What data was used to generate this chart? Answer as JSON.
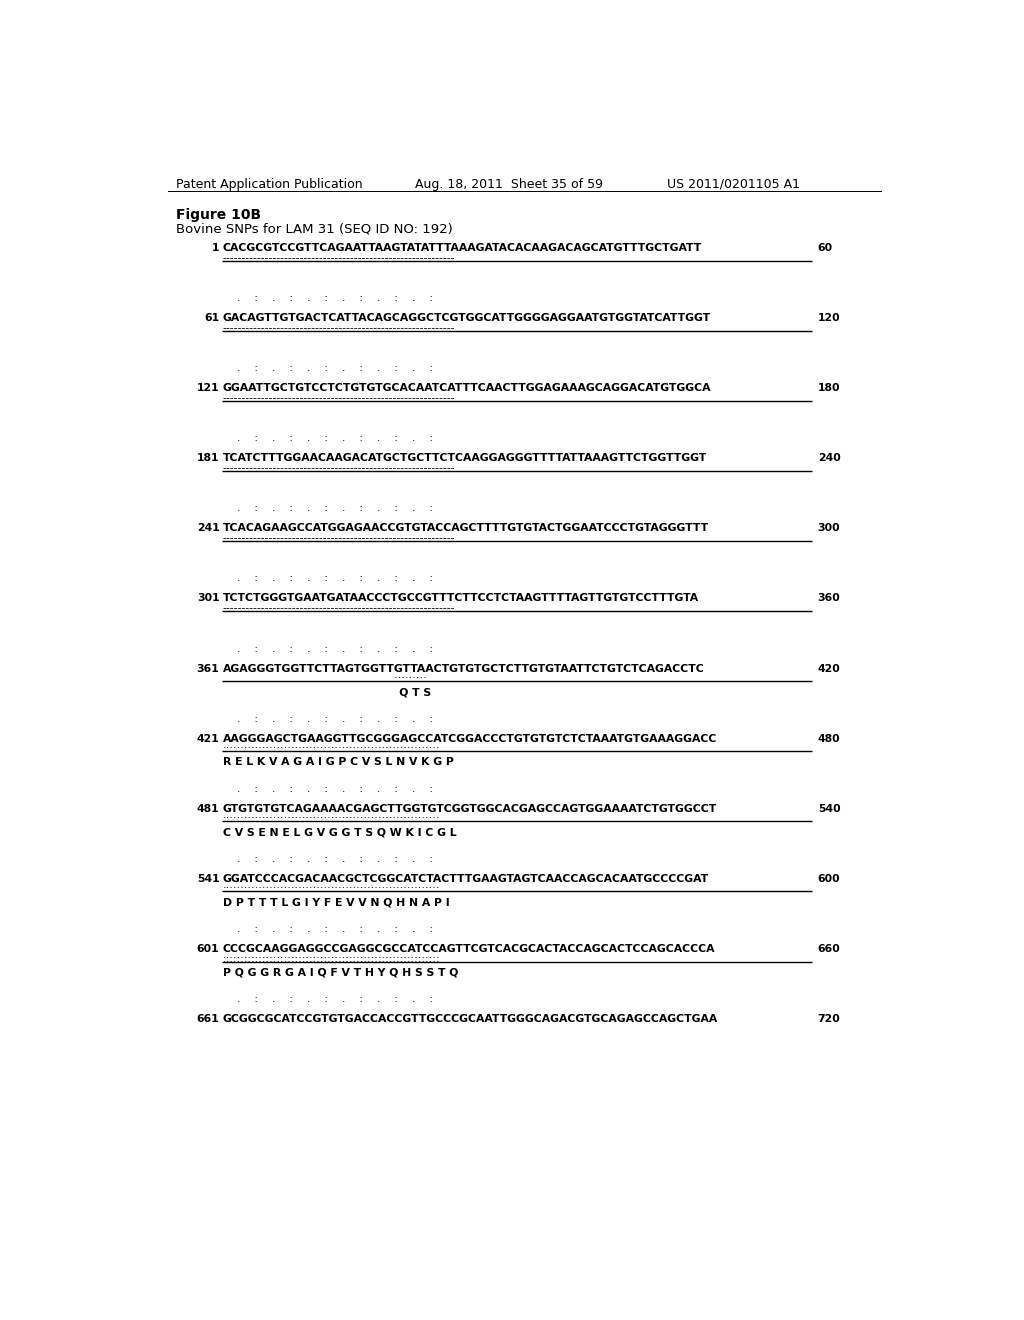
{
  "header_left": "Patent Application Publication",
  "header_mid": "Aug. 18, 2011  Sheet 35 of 59",
  "header_right": "US 2011/0201105 A1",
  "figure_label": "Figure 10B",
  "figure_subtitle": "Bovine SNPs for LAM 31 (SEQ ID NO: 192)",
  "background_color": "#ffffff",
  "blocks": [
    {
      "line_num": "1",
      "end_num": "60",
      "sequence": "CACGCGTCCGTTCAGAATTAAGTATATTTAAAGATACACAAGACAGCATGTTTGCTGATT",
      "dots": "------------------------------------------------------------",
      "has_line": true,
      "has_ticks": false,
      "amino": "",
      "dot_type": "dash"
    },
    {
      "line_num": "61",
      "end_num": "120",
      "sequence": "GACAGTTGTGACTCATTACAGCAGGCTCGTGGCATTGGGGAGGAATGTGGTATCATTGGT",
      "dots": "------------------------------------------------------------",
      "has_line": true,
      "has_ticks": true,
      "amino": "",
      "dot_type": "dash"
    },
    {
      "line_num": "121",
      "end_num": "180",
      "sequence": "GGAATTGCTGTCCTCTGTGTGCACAATCATTTCAACTTGGAGAAAGCAGGACATGTGGCA",
      "dots": "------------------------------------------------------------",
      "has_line": true,
      "has_ticks": true,
      "amino": "",
      "dot_type": "dash"
    },
    {
      "line_num": "181",
      "end_num": "240",
      "sequence": "TCATCTTTGGAACAAGACATGCTGCTTCTCAAGGAGGGTTTTATTAAAGTTCTGGTTGGT",
      "dots": "------------------------------------------------------------",
      "has_line": true,
      "has_ticks": true,
      "amino": "",
      "dot_type": "dash"
    },
    {
      "line_num": "241",
      "end_num": "300",
      "sequence": "TCACAGAAGCCATGGAGAACCGTGTACCAGCTTTTGTGTACTGGAATCCCTGTAGGGTTT",
      "dots": "------------------------------------------------------------",
      "has_line": true,
      "has_ticks": true,
      "amino": "",
      "dot_type": "dash"
    },
    {
      "line_num": "301",
      "end_num": "360",
      "sequence": "TCTCTGGGTGAATGATAACCCTGCCGTTTCTTCCTCTAAGTTTTAGTTGTGTCCTTTGTA",
      "dots": "------------------------------------------------------------",
      "has_line": true,
      "has_ticks": true,
      "amino": "",
      "dot_type": "dash"
    },
    {
      "line_num": "361",
      "end_num": "420",
      "sequence": "AGAGGGTGGTTCTTAGTGGTTGTTAACTGTGTGCTCTTGTGTAATTCTGTCTCAGACCTC",
      "dots": "...................................................:::::::::",
      "has_line": true,
      "has_ticks": true,
      "amino": "                                               Q T S",
      "dot_type": "mixed"
    },
    {
      "line_num": "421",
      "end_num": "480",
      "sequence": "AAGGGAGCTGAAGGTTGCGGGAGCCATCGGACCCTGTGTGTCTCTAAATGTGAAAGGACC",
      "dots": "::::::::::::::::::::::::::::::::::::::::::::::::::::::::::::",
      "has_line": true,
      "has_ticks": true,
      "amino": "R E L K V A G A I G P C V S L N V K G P",
      "dot_type": "colon"
    },
    {
      "line_num": "481",
      "end_num": "540",
      "sequence": "GTGTGTGTCAGAAAACGAGCTTGGTGTCGGTGGCACGAGCCAGTGGAAAATCTGTGGCCT",
      "dots": "::::::::::::::::::::::::::::::::::::::::::::::::::::::::::::",
      "has_line": true,
      "has_ticks": true,
      "amino": "C V S E N E L G V G G T S Q W K I C G L",
      "dot_type": "colon"
    },
    {
      "line_num": "541",
      "end_num": "600",
      "sequence": "GGATCCCACGACAACGCTCGGCATCTACTTTGAAGTAGTCAACCAGCACAATGCCCCGAT",
      "dots": "::::::::::::::::::::::::::::::::::::::::::::::::::::::::::::",
      "has_line": true,
      "has_ticks": true,
      "amino": "D P T T T L G I Y F E V V N Q H N A P I",
      "dot_type": "colon"
    },
    {
      "line_num": "601",
      "end_num": "660",
      "sequence": "CCCGCAAGGAGGCCGAGGCGCCATCCAGTTCGTCACGCACTACCAGCACTCCAGCACCCA",
      "dots": "::::::::::::::::::::::::::::::::::::::::::::::::::::::::::::",
      "has_line": true,
      "has_ticks": true,
      "amino": "P Q G G R G A I Q F V T H Y Q H S S T Q",
      "dot_type": "colon"
    },
    {
      "line_num": "661",
      "end_num": "720",
      "sequence": "GCGGCGCATCCGTGTGACCACCGTTGCCCGCAATTGGGCAGACGTGCAGAGCCAGCTGAA",
      "dots": "",
      "has_line": false,
      "has_ticks": true,
      "amino": "",
      "dot_type": "none"
    }
  ]
}
